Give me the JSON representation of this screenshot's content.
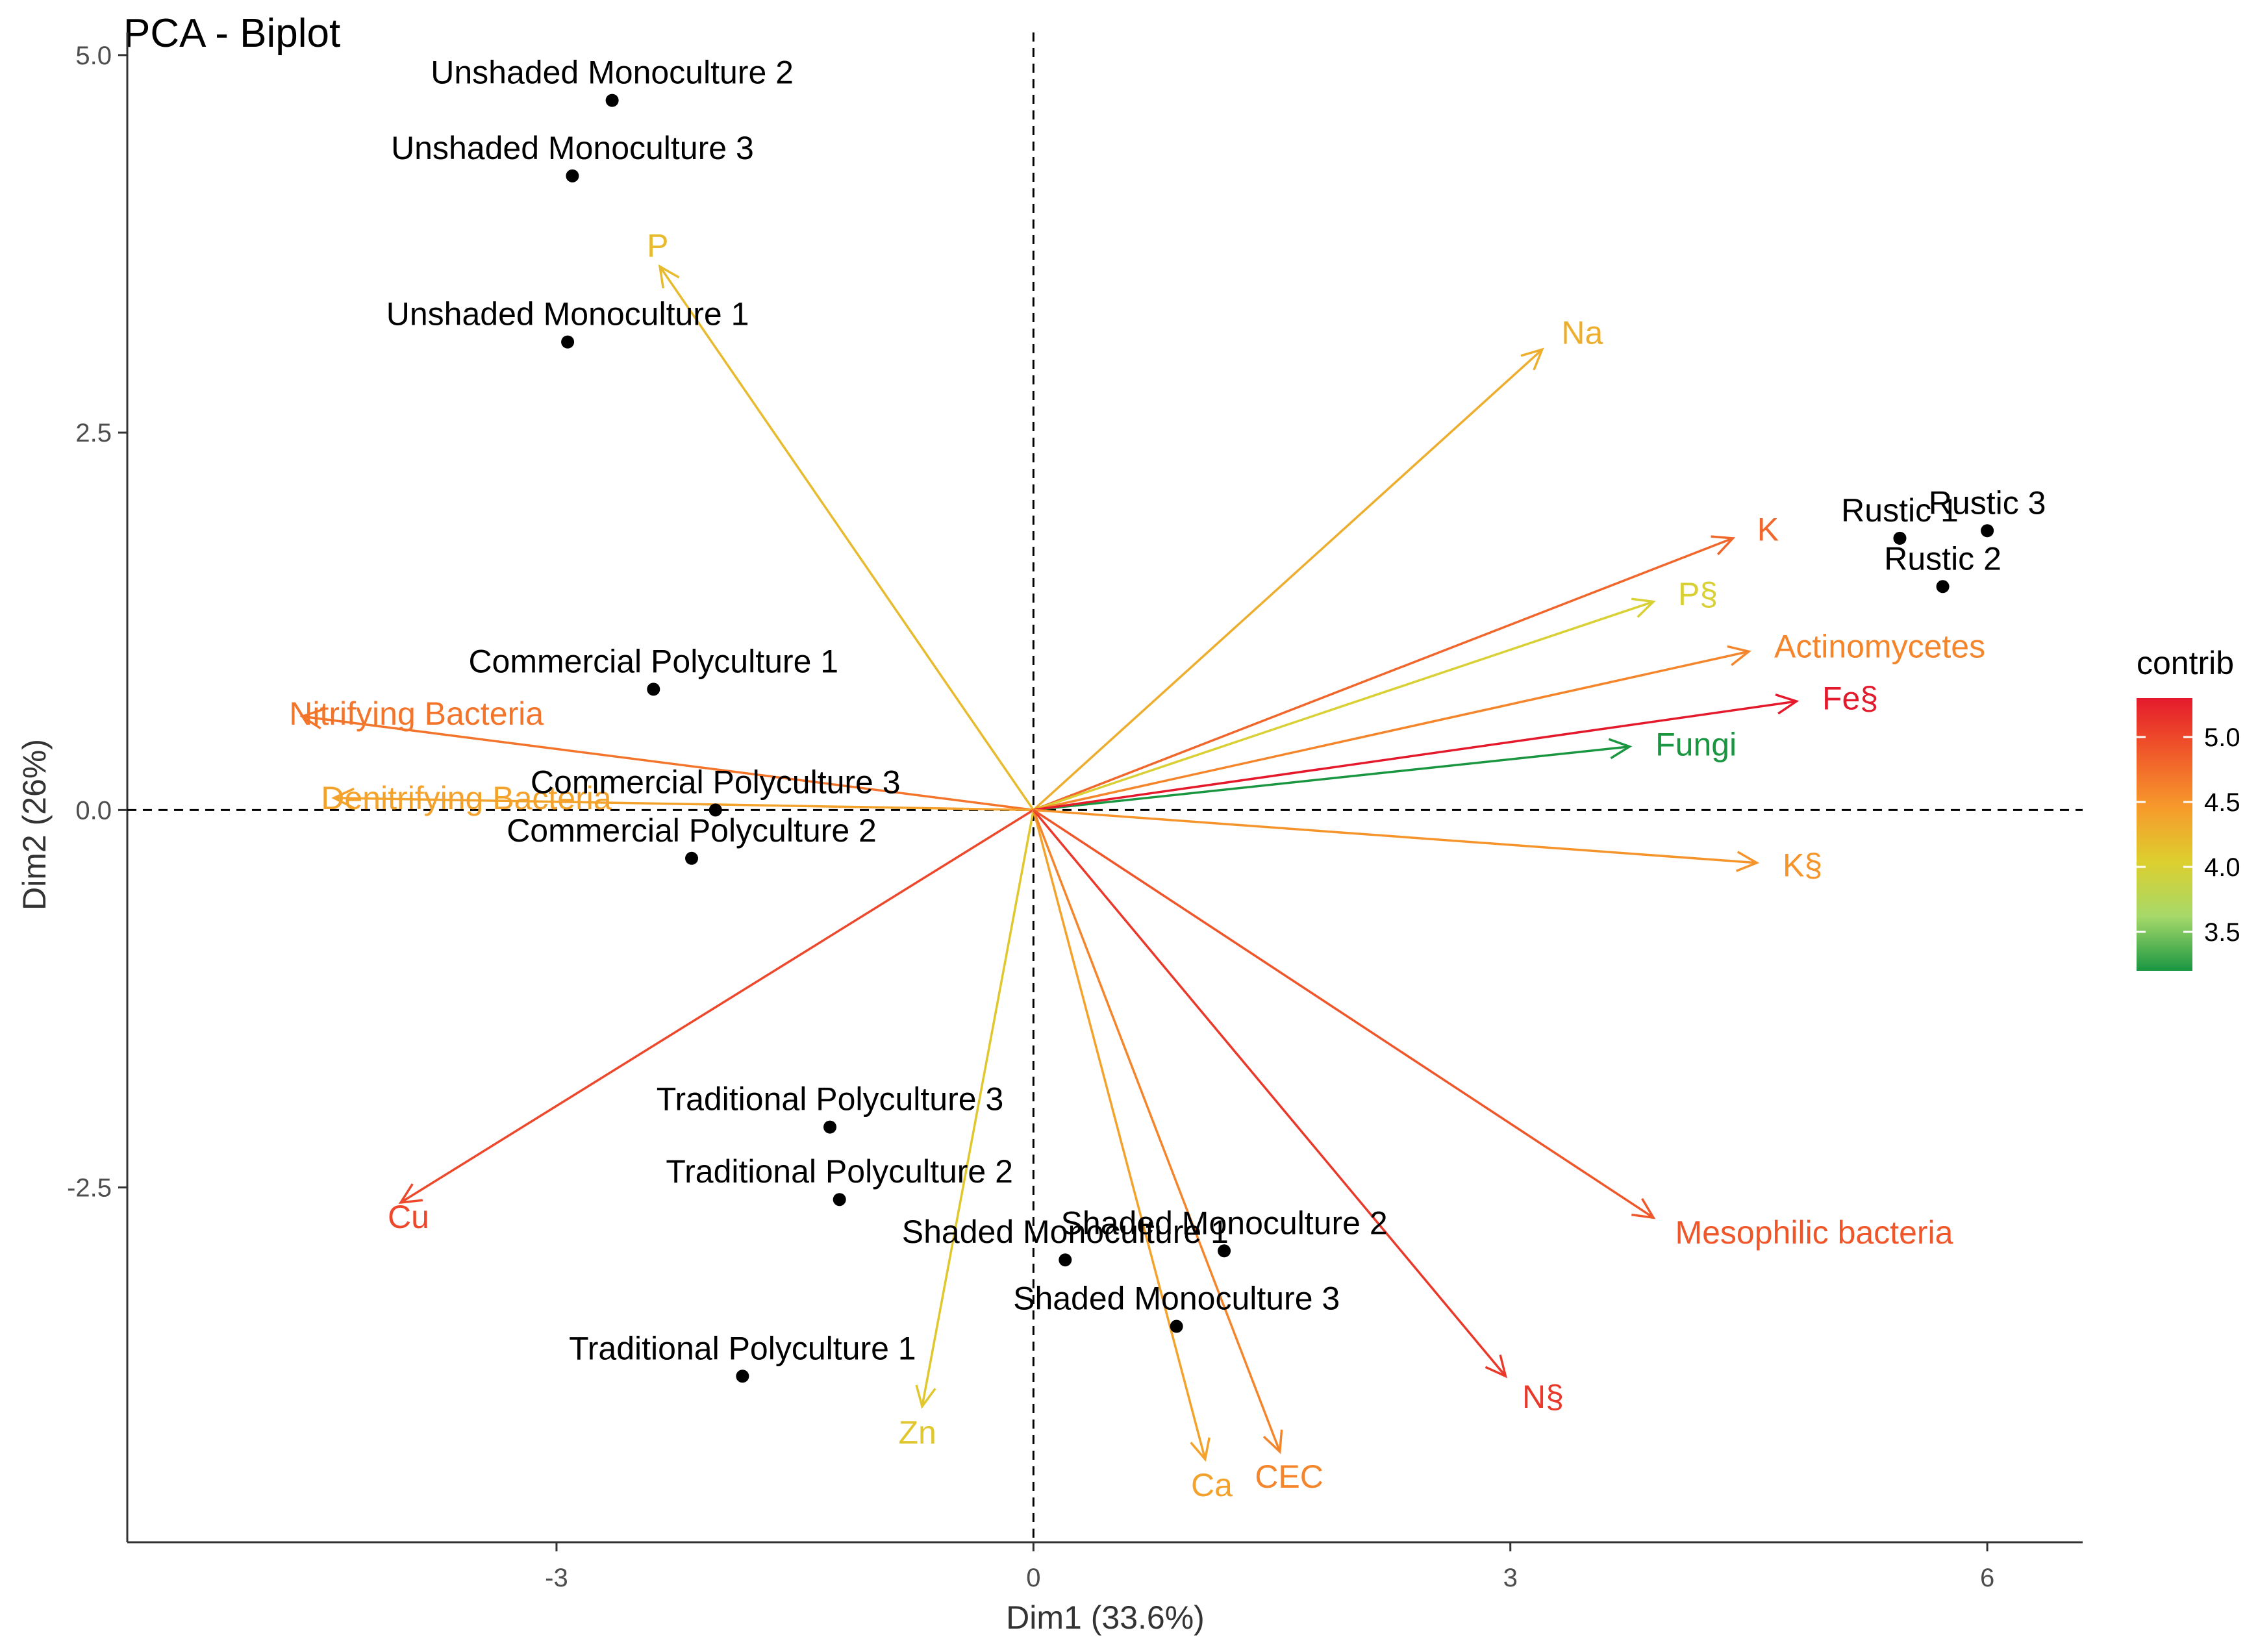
{
  "chart_data": {
    "type": "scatter",
    "title": "PCA - Biplot",
    "xlabel": "Dim1 (33.6%)",
    "ylabel": "Dim2 (26%)",
    "xlim": [
      -5.7,
      6.6
    ],
    "ylim": [
      -4.85,
      5.15
    ],
    "x_ticks": [
      -3,
      0,
      3,
      6
    ],
    "x_tick_labels": [
      "-3",
      "0",
      "3",
      "6"
    ],
    "y_ticks": [
      -2.5,
      0.0,
      2.5,
      5.0
    ],
    "y_tick_labels": [
      "-2.5",
      "0.0",
      "2.5",
      "5.0"
    ],
    "grid": false,
    "reference_lines": {
      "x": 0,
      "y": 0,
      "style": "dashed"
    },
    "individuals": [
      {
        "label": "Unshaded Monoculture 2",
        "x": -2.65,
        "y": 4.7
      },
      {
        "label": "Unshaded Monoculture 3",
        "x": -2.9,
        "y": 4.2
      },
      {
        "label": "Unshaded Monoculture 1",
        "x": -2.93,
        "y": 3.1
      },
      {
        "label": "Commercial Polyculture 1",
        "x": -2.39,
        "y": 0.8
      },
      {
        "label": "Commercial Polyculture 3",
        "x": -2.0,
        "y": 0.0
      },
      {
        "label": "Commercial Polyculture 2",
        "x": -2.15,
        "y": -0.32
      },
      {
        "label": "Traditional Polyculture 3",
        "x": -1.28,
        "y": -2.1
      },
      {
        "label": "Traditional Polyculture 2",
        "x": -1.22,
        "y": -2.58
      },
      {
        "label": "Traditional Polyculture 1",
        "x": -1.83,
        "y": -3.75
      },
      {
        "label": "Shaded Monoculture 2",
        "x": 1.2,
        "y": -2.92
      },
      {
        "label": "Shaded Monoculture 1",
        "x": 0.2,
        "y": -2.98
      },
      {
        "label": "Shaded Monoculture 3",
        "x": 0.9,
        "y": -3.42
      },
      {
        "label": "Rustic 1",
        "x": 5.45,
        "y": 1.8
      },
      {
        "label": "Rustic 3",
        "x": 6.0,
        "y": 1.85
      },
      {
        "label": "Rustic 2",
        "x": 5.72,
        "y": 1.48
      }
    ],
    "variables": [
      {
        "label": "P",
        "x": -2.35,
        "y": 3.6,
        "contrib": 4.2
      },
      {
        "label": "Na",
        "x": 3.2,
        "y": 3.05,
        "contrib": 4.3
      },
      {
        "label": "K",
        "x": 4.4,
        "y": 1.8,
        "contrib": 4.8
      },
      {
        "label": "P§",
        "x": 3.9,
        "y": 1.38,
        "contrib": 4.0
      },
      {
        "label": "Actinomycetes",
        "x": 4.5,
        "y": 1.05,
        "contrib": 4.6
      },
      {
        "label": "Fungi",
        "x": 3.75,
        "y": 0.42,
        "contrib": 3.2
      },
      {
        "label": "Fe§",
        "x": 4.8,
        "y": 0.72,
        "contrib": 5.3
      },
      {
        "label": "K§",
        "x": 4.55,
        "y": -0.35,
        "contrib": 4.5
      },
      {
        "label": "Nitrifying Bacteria",
        "x": -4.6,
        "y": 0.62,
        "contrib": 4.7
      },
      {
        "label": "Denitrifying Bacteria",
        "x": -4.4,
        "y": 0.08,
        "contrib": 4.4
      },
      {
        "label": "Cu",
        "x": -3.98,
        "y": -2.6,
        "contrib": 5.0
      },
      {
        "label": "Zn",
        "x": -0.7,
        "y": -3.95,
        "contrib": 4.1
      },
      {
        "label": "Ca",
        "x": 1.08,
        "y": -4.3,
        "contrib": 4.4
      },
      {
        "label": "CEC",
        "x": 1.55,
        "y": -4.25,
        "contrib": 4.6
      },
      {
        "label": "N§",
        "x": 2.97,
        "y": -3.75,
        "contrib": 5.1
      },
      {
        "label": "Mesophilic bacteria",
        "x": 3.9,
        "y": -2.7,
        "contrib": 4.9
      }
    ],
    "legend": {
      "title": "contrib",
      "ticks": [
        3.5,
        4.0,
        4.5,
        5.0
      ],
      "tick_labels": [
        "3.5",
        "4.0",
        "4.5",
        "5.0"
      ],
      "range": [
        3.2,
        5.3
      ],
      "colors": [
        "#1A9641",
        "#A6D96A",
        "#DDCF2E",
        "#F79A2C",
        "#F05A2A",
        "#E41A2C"
      ],
      "placement": "right"
    }
  }
}
